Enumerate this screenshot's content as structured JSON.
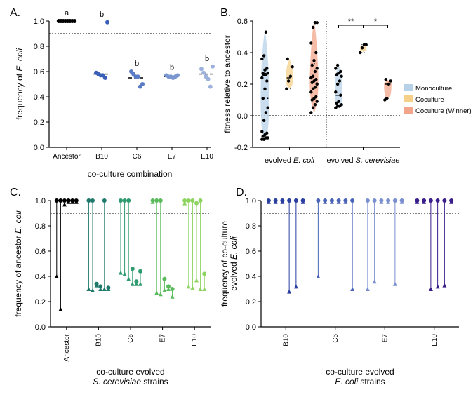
{
  "panelA": {
    "label": "A.",
    "type": "dotplot",
    "ylabel_lines": [
      "frequency of ",
      "E. coli"
    ],
    "xlabel": "co-culture combination",
    "ylim": [
      0.0,
      1.0
    ],
    "ytick_step": 0.2,
    "hline_y": 0.9,
    "categories": [
      "Ancestor",
      "B10",
      "C6",
      "E7",
      "E10"
    ],
    "group_letters": [
      "a",
      "b",
      "b",
      "b",
      "b"
    ],
    "colors": [
      "#000000",
      "#3b5fb8",
      "#5a7cc4",
      "#7a96d0",
      "#9cb2dc"
    ],
    "means": [
      1.0,
      0.58,
      0.55,
      0.56,
      0.58
    ],
    "points": [
      [
        1.0,
        1.0,
        1.0,
        1.0,
        1.0,
        1.0,
        1.0,
        1.0
      ],
      [
        0.59,
        0.58,
        0.57,
        0.57,
        0.55,
        0.99
      ],
      [
        0.6,
        0.58,
        0.56,
        0.56,
        0.48,
        0.5
      ],
      [
        0.57,
        0.56,
        0.56,
        0.55,
        0.56,
        0.57
      ],
      [
        0.62,
        0.59,
        0.56,
        0.54,
        0.48,
        0.64
      ]
    ]
  },
  "panelB": {
    "label": "B.",
    "type": "violin",
    "ylabel": "fitness relative to ancestor",
    "ylim": [
      -0.2,
      0.6
    ],
    "ytick_step": 0.2,
    "hline_y": 0.0,
    "xcats": [
      "evolved ",
      "evolved "
    ],
    "xcats_italic": [
      "E. coli",
      "S. cerevisiae"
    ],
    "legend": [
      {
        "label": "Monoculture",
        "color": "#b7d2e8"
      },
      {
        "label": "Coculture",
        "color": "#f6d089"
      },
      {
        "label": "Coculture (Winner)",
        "color": "#f2a58a"
      }
    ],
    "sig": [
      {
        "label": "**",
        "span": [
          3,
          4
        ]
      },
      {
        "label": "*",
        "span": [
          4,
          5
        ]
      }
    ],
    "violins": [
      {
        "x": 0,
        "color": "#b7d2e8",
        "median": 0.11,
        "q1": -0.11,
        "q3": 0.27,
        "width": 0.35,
        "points": [
          -0.15,
          -0.15,
          -0.14,
          -0.14,
          -0.13,
          -0.12,
          -0.11,
          -0.1,
          -0.03,
          0.02,
          0.05,
          0.11,
          0.17,
          0.22,
          0.24,
          0.26,
          0.26,
          0.27,
          0.27,
          0.29,
          0.3,
          0.36,
          0.38,
          0.53
        ]
      },
      {
        "x": 1,
        "color": "#f6d089",
        "median": 0.24,
        "q1": 0.17,
        "q3": 0.31,
        "width": 0.28,
        "points": [
          0.17,
          0.22,
          0.25,
          0.31,
          0.36
        ]
      },
      {
        "x": 2,
        "color": "#f2a58a",
        "median": 0.21,
        "q1": 0.1,
        "q3": 0.33,
        "width": 0.35,
        "points": [
          0.02,
          0.05,
          0.07,
          0.09,
          0.1,
          0.11,
          0.12,
          0.15,
          0.17,
          0.18,
          0.2,
          0.21,
          0.22,
          0.23,
          0.24,
          0.25,
          0.28,
          0.3,
          0.32,
          0.35,
          0.4,
          0.46,
          0.56,
          0.59,
          0.59
        ]
      },
      {
        "x": 3,
        "color": "#b7d2e8",
        "median": 0.13,
        "q1": 0.07,
        "q3": 0.27,
        "width": 0.3,
        "points": [
          0.05,
          0.06,
          0.06,
          0.07,
          0.08,
          0.09,
          0.13,
          0.15,
          0.2,
          0.22,
          0.25,
          0.26,
          0.27,
          0.28,
          0.3,
          0.32
        ]
      },
      {
        "x": 4,
        "color": "#f6d089",
        "median": 0.43,
        "q1": 0.4,
        "q3": 0.45,
        "width": 0.26,
        "points": [
          0.4,
          0.43,
          0.45,
          0.45
        ]
      },
      {
        "x": 5,
        "color": "#f2a58a",
        "median": 0.2,
        "q1": 0.11,
        "q3": 0.22,
        "width": 0.3,
        "points": [
          0.1,
          0.11,
          0.2,
          0.22,
          0.23
        ]
      }
    ],
    "divider_after_x": 2
  },
  "panelC": {
    "label": "C.",
    "type": "lollipop",
    "ylabel_lines": [
      "frequency of ancestor ",
      "E. coli"
    ],
    "xlabel_lines": [
      "co-culture evolved",
      "S. cerevisiae",
      " strains"
    ],
    "ylim": [
      0.0,
      1.0
    ],
    "ytick_step": 0.2,
    "hline_y": 0.9,
    "groups": [
      "Ancestor",
      "B10",
      "C6",
      "E7",
      "E10"
    ],
    "group_colors": [
      "#000000",
      "#1f7a6b",
      "#2e9b6e",
      "#5abb5c",
      "#8dd35f"
    ],
    "series": [
      {
        "color": "#000000",
        "items": [
          [
            1.0,
            0.4
          ],
          [
            1.0,
            0.14
          ],
          [
            1.0,
            0.97
          ],
          [
            1.0,
            0.99
          ],
          [
            1.0,
            0.99
          ],
          [
            1.0,
            0.99
          ]
        ]
      },
      {
        "color": "#1f7a6b",
        "items": [
          [
            1.0,
            0.3
          ],
          [
            1.0,
            0.29
          ],
          [
            0.34,
            0.33
          ],
          [
            0.32,
            0.3
          ],
          [
            1.0,
            0.3
          ],
          [
            0.31,
            0.3
          ]
        ]
      },
      {
        "color": "#2e9b6e",
        "items": [
          [
            1.0,
            0.43
          ],
          [
            1.0,
            0.42
          ],
          [
            1.0,
            0.38
          ],
          [
            0.46,
            0.34
          ],
          [
            0.36,
            0.34
          ],
          [
            0.44,
            0.34
          ]
        ]
      },
      {
        "color": "#5abb5c",
        "items": [
          [
            1.0,
            0.99
          ],
          [
            1.0,
            0.27
          ],
          [
            1.0,
            0.26
          ],
          [
            0.38,
            0.29
          ],
          [
            0.32,
            0.3
          ],
          [
            0.3,
            0.24
          ]
        ]
      },
      {
        "color": "#8dd35f",
        "items": [
          [
            1.0,
            0.98
          ],
          [
            1.0,
            0.32
          ],
          [
            1.0,
            0.31
          ],
          [
            0.98,
            0.37
          ],
          [
            1.0,
            0.3
          ],
          [
            0.42,
            0.3
          ]
        ]
      }
    ]
  },
  "panelD": {
    "label": "D.",
    "type": "lollipop",
    "ylabel_lines": [
      "frequency of co-culture",
      "evolved ",
      "E. coli"
    ],
    "xlabel_lines": [
      "co-culture evolved",
      "E. coli",
      " strains"
    ],
    "ylim": [
      0.0,
      1.0
    ],
    "ytick_step": 0.2,
    "hline_y": 0.9,
    "groups": [
      "B10",
      "C6",
      "E7",
      "E10"
    ],
    "group_colors": [
      "#2b3fa0",
      "#4a62b8",
      "#7a8fd0",
      "#3a1e8c"
    ],
    "series": [
      {
        "color": "#2b3fa0",
        "items": [
          [
            1.0,
            0.99
          ],
          [
            1.0,
            0.99
          ],
          [
            1.0,
            0.99
          ],
          [
            1.0,
            0.28
          ],
          [
            1.0,
            0.32
          ],
          [
            1.0,
            0.99
          ]
        ]
      },
      {
        "color": "#4a62b8",
        "items": [
          [
            1.0,
            0.4
          ],
          [
            1.0,
            0.99
          ],
          [
            1.0,
            0.99
          ],
          [
            1.0,
            0.99
          ],
          [
            1.0,
            0.99
          ],
          [
            1.0,
            0.3
          ]
        ]
      },
      {
        "color": "#7a8fd0",
        "items": [
          [
            1.0,
            0.3
          ],
          [
            1.0,
            0.36
          ],
          [
            1.0,
            0.99
          ],
          [
            1.0,
            0.99
          ],
          [
            1.0,
            0.34
          ],
          [
            1.0,
            0.99
          ]
        ]
      },
      {
        "color": "#3a1e8c",
        "items": [
          [
            1.0,
            0.99
          ],
          [
            1.0,
            0.99
          ],
          [
            1.0,
            0.3
          ],
          [
            1.0,
            0.32
          ],
          [
            1.0,
            0.33
          ],
          [
            1.0,
            0.99
          ]
        ]
      }
    ]
  }
}
